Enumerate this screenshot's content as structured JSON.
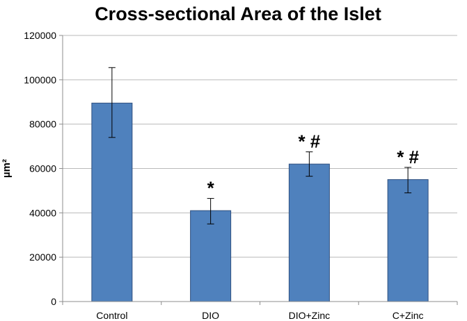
{
  "chart_data": {
    "type": "bar",
    "title": "Cross-sectional Area of the Islet",
    "xlabel": "",
    "ylabel": "µm²",
    "categories": [
      "Control",
      "DIO",
      "DIO+Zinc",
      "C+Zinc"
    ],
    "values": [
      89500,
      41000,
      62000,
      55000
    ],
    "error_low": [
      74000,
      35000,
      56500,
      49000
    ],
    "error_high": [
      105500,
      46500,
      67500,
      60500
    ],
    "annotations": [
      "",
      "*",
      "* #",
      "* #"
    ],
    "ylim": [
      0,
      120000
    ],
    "yticks": [
      0,
      20000,
      40000,
      60000,
      80000,
      100000,
      120000
    ],
    "ytick_labels": [
      "0",
      "20000",
      "40000",
      "60000",
      "80000",
      "100000",
      "120000"
    ],
    "grid": true,
    "legend": "none",
    "bar_color": "#4f81bd"
  }
}
